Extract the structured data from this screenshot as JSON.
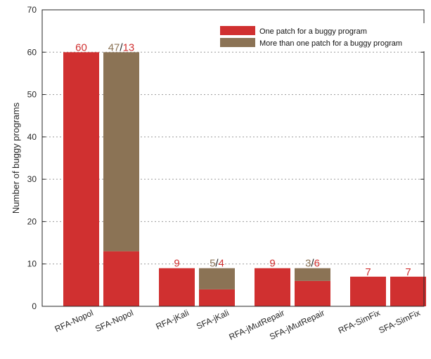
{
  "chart_data": {
    "type": "bar",
    "stacked": true,
    "title": "",
    "xlabel": "",
    "ylabel": "Number of buggy programs",
    "ylim": [
      0,
      70
    ],
    "yticks": [
      0,
      10,
      20,
      30,
      40,
      50,
      60,
      70
    ],
    "grid": "horizontal dotted",
    "legend_position": "top-right",
    "groups": [
      [
        "RFA-Nopol",
        "SFA-Nopol"
      ],
      [
        "RFA-jKali",
        "SFA-jKali"
      ],
      [
        "RFA-jMutRepair",
        "SFA-jMutRepair"
      ],
      [
        "RFA-SimFix",
        "SFA-SimFix"
      ]
    ],
    "categories": [
      "RFA-Nopol",
      "SFA-Nopol",
      "RFA-jKali",
      "SFA-jKali",
      "RFA-jMutRepair",
      "SFA-jMutRepair",
      "RFA-SimFix",
      "SFA-SimFix"
    ],
    "series": [
      {
        "name": "One patch for a buggy program",
        "color": "#d03030",
        "values": [
          60,
          13,
          9,
          4,
          9,
          6,
          7,
          7
        ]
      },
      {
        "name": "More than one patch for a buggy program",
        "color": "#8b7355",
        "values": [
          0,
          47,
          0,
          5,
          0,
          3,
          0,
          0
        ]
      }
    ],
    "bar_labels": [
      [
        {
          "text": "60",
          "color": "#d03030"
        }
      ],
      [
        {
          "text": "47",
          "color": "#8b7355"
        },
        {
          "text": "/",
          "color": "#222222"
        },
        {
          "text": "13",
          "color": "#d03030"
        }
      ],
      [
        {
          "text": "9",
          "color": "#d03030"
        }
      ],
      [
        {
          "text": "5",
          "color": "#8b7355"
        },
        {
          "text": "/",
          "color": "#222222"
        },
        {
          "text": "4",
          "color": "#d03030"
        }
      ],
      [
        {
          "text": "9",
          "color": "#d03030"
        }
      ],
      [
        {
          "text": "3",
          "color": "#8b7355"
        },
        {
          "text": "/",
          "color": "#222222"
        },
        {
          "text": "6",
          "color": "#d03030"
        }
      ],
      [
        {
          "text": "7",
          "color": "#d03030"
        }
      ],
      [
        {
          "text": "7",
          "color": "#d03030"
        }
      ]
    ]
  }
}
